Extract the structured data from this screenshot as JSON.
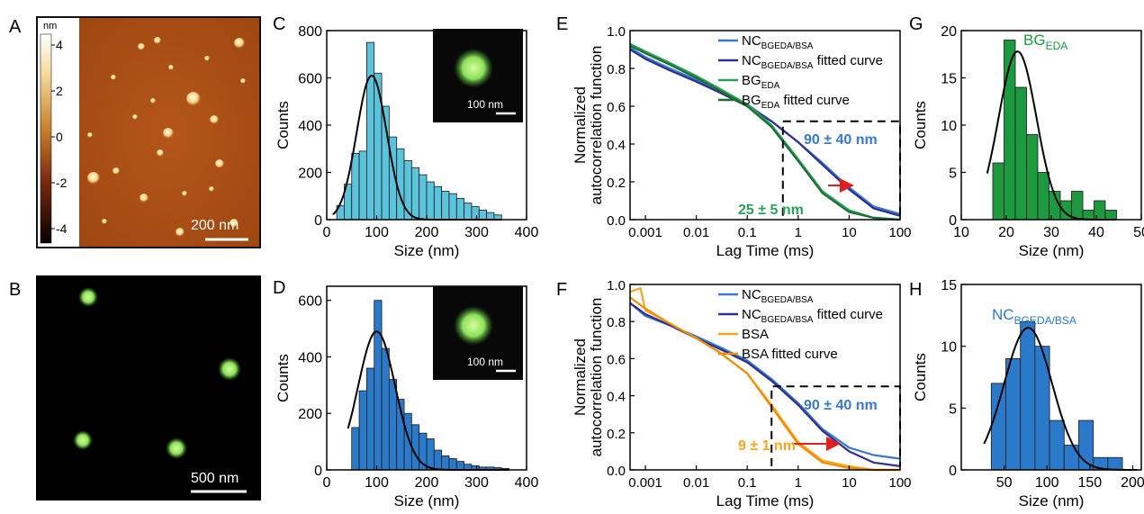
{
  "panels": {
    "A": {
      "letter": "A",
      "colorbar_unit": "nm",
      "colorbar_ticks": [
        "4",
        "2",
        "0",
        "-2",
        "-4"
      ],
      "scale_bar": "200 nm"
    },
    "B": {
      "letter": "B",
      "scale_bar": "500 nm"
    },
    "C": {
      "letter": "C",
      "inset_scale_bar": "100 nm"
    },
    "D": {
      "letter": "D",
      "inset_scale_bar": "100 nm"
    },
    "E": {
      "letter": "E",
      "annotation_large": "90 ± 40 nm",
      "annotation_small": "25 ± 5 nm"
    },
    "F": {
      "letter": "F",
      "annotation_large": "90 ± 40 nm",
      "annotation_small": "9 ± 1 nm"
    },
    "G": {
      "letter": "G"
    },
    "H": {
      "letter": "H"
    }
  },
  "colors": {
    "hist_C": "#5cc3dc",
    "hist_D": "#2b7ac9",
    "hist_G": "#1d9a3f",
    "hist_H": "#2b7ac9",
    "nc_trace": "#3a78c8",
    "nc_fit": "#2e2f8f",
    "bg_trace": "#2ca05a",
    "bg_fit": "#1e6e35",
    "bsa_trace": "#f5a623",
    "bsa_fit": "#f08c00",
    "arrow": "#e02020"
  },
  "chart_data": [
    {
      "id": "C",
      "type": "bar",
      "xlabel": "Size (nm)",
      "ylabel": "Counts",
      "xlim": [
        0,
        400
      ],
      "ylim": [
        0,
        800
      ],
      "xticks": [
        "0",
        "100",
        "200",
        "300",
        "400"
      ],
      "yticks": [
        "0",
        "200",
        "400",
        "600",
        "800"
      ],
      "bin_edges": [
        20,
        35,
        50,
        65,
        80,
        95,
        110,
        125,
        140,
        155,
        170,
        185,
        200,
        215,
        230,
        245,
        260,
        275,
        290,
        305,
        320,
        335,
        350
      ],
      "values": [
        60,
        150,
        280,
        290,
        750,
        620,
        480,
        350,
        300,
        250,
        220,
        190,
        160,
        140,
        120,
        110,
        90,
        70,
        55,
        40,
        30,
        20
      ],
      "fit": {
        "type": "gaussian",
        "mean": 90,
        "sigma": 30,
        "peak": 610
      }
    },
    {
      "id": "D",
      "type": "bar",
      "xlabel": "Size (nm)",
      "ylabel": "Counts",
      "xlim": [
        0,
        400
      ],
      "ylim": [
        0,
        650
      ],
      "xticks": [
        "0",
        "100",
        "200",
        "300",
        "400"
      ],
      "yticks": [
        "0",
        "200",
        "400",
        "600"
      ],
      "bin_edges": [
        50,
        65,
        80,
        95,
        110,
        125,
        140,
        155,
        170,
        185,
        200,
        215,
        230,
        245,
        260,
        275,
        290,
        305,
        320,
        335,
        350,
        365
      ],
      "values": [
        150,
        280,
        360,
        600,
        430,
        320,
        250,
        200,
        160,
        130,
        110,
        70,
        50,
        40,
        30,
        20,
        15,
        10,
        10,
        8,
        5
      ],
      "fit": {
        "type": "gaussian",
        "mean": 100,
        "sigma": 37,
        "peak": 490
      }
    },
    {
      "id": "E",
      "type": "line",
      "xlabel": "Lag Time (ms)",
      "ylabel": "Normalized autocorrelation function",
      "xscale": "log",
      "xlim": [
        0.0005,
        100
      ],
      "ylim": [
        0,
        1.0
      ],
      "xticks": [
        "0.001",
        "0.01",
        "0.1",
        "1",
        "10",
        "100"
      ],
      "yticks": [
        "0.0",
        "0.2",
        "0.4",
        "0.6",
        "0.8",
        "1.0"
      ],
      "legend_position": "top-right",
      "series": [
        {
          "legend": "NC",
          "legend_sub": "BGEDA/BSA",
          "legend_suffix": "",
          "x": [
            0.0005,
            0.001,
            0.003,
            0.01,
            0.03,
            0.1,
            0.3,
            1,
            3,
            10,
            30,
            100
          ],
          "y": [
            0.91,
            0.86,
            0.8,
            0.74,
            0.68,
            0.61,
            0.52,
            0.41,
            0.3,
            0.17,
            0.07,
            0.03
          ]
        },
        {
          "legend": "NC",
          "legend_sub": "BGEDA/BSA",
          "legend_suffix": " fitted curve",
          "x": [
            0.0005,
            0.001,
            0.003,
            0.01,
            0.03,
            0.1,
            0.3,
            1,
            3,
            10,
            30,
            100
          ],
          "y": [
            0.9,
            0.85,
            0.79,
            0.73,
            0.67,
            0.6,
            0.52,
            0.41,
            0.29,
            0.16,
            0.06,
            0.02
          ]
        },
        {
          "legend": "BG",
          "legend_sub": "EDA",
          "legend_suffix": "",
          "x": [
            0.0005,
            0.001,
            0.003,
            0.01,
            0.03,
            0.1,
            0.3,
            1,
            3,
            10,
            30,
            100
          ],
          "y": [
            0.93,
            0.89,
            0.83,
            0.76,
            0.69,
            0.61,
            0.5,
            0.32,
            0.15,
            0.05,
            0.01,
            0.0
          ]
        },
        {
          "legend": "BG",
          "legend_sub": "EDA",
          "legend_suffix": " fitted curve",
          "x": [
            0.0005,
            0.001,
            0.003,
            0.01,
            0.03,
            0.1,
            0.3,
            1,
            3,
            10,
            30,
            100
          ],
          "y": [
            0.92,
            0.88,
            0.82,
            0.75,
            0.68,
            0.6,
            0.49,
            0.31,
            0.14,
            0.04,
            0.01,
            0.0
          ]
        }
      ],
      "box": {
        "x": [
          0.5,
          100
        ],
        "y": [
          0.02,
          0.52
        ]
      }
    },
    {
      "id": "F",
      "type": "line",
      "xlabel": "Lag Time (ms)",
      "ylabel": "Normalized autocorrelation function",
      "xscale": "log",
      "xlim": [
        0.0005,
        100
      ],
      "ylim": [
        0,
        1.0
      ],
      "xticks": [
        "0.001",
        "0.01",
        "0.1",
        "1",
        "10",
        "100"
      ],
      "yticks": [
        "0.0",
        "0.2",
        "0.4",
        "0.6",
        "0.8",
        "1.0"
      ],
      "legend_position": "top-right",
      "series": [
        {
          "legend": "NC",
          "legend_sub": "BGEDA/BSA",
          "legend_suffix": "",
          "x": [
            0.0005,
            0.001,
            0.003,
            0.01,
            0.03,
            0.1,
            0.3,
            1,
            3,
            10,
            30,
            100
          ],
          "y": [
            0.9,
            0.83,
            0.78,
            0.72,
            0.66,
            0.59,
            0.49,
            0.36,
            0.22,
            0.12,
            0.08,
            0.06
          ]
        },
        {
          "legend": "NC",
          "legend_sub": "BGEDA/BSA",
          "legend_suffix": " fitted curve",
          "x": [
            0.0005,
            0.001,
            0.003,
            0.01,
            0.03,
            0.1,
            0.3,
            1,
            3,
            10,
            30,
            100
          ],
          "y": [
            0.9,
            0.84,
            0.78,
            0.71,
            0.65,
            0.58,
            0.48,
            0.35,
            0.21,
            0.1,
            0.04,
            0.02
          ]
        },
        {
          "legend": "BSA",
          "legend_sub": "",
          "legend_suffix": "",
          "x": [
            0.0005,
            0.0008,
            0.001,
            0.003,
            0.01,
            0.03,
            0.1,
            0.3,
            1,
            3,
            10,
            30,
            100
          ],
          "y": [
            0.96,
            0.98,
            0.86,
            0.79,
            0.71,
            0.63,
            0.52,
            0.35,
            0.15,
            0.05,
            0.02,
            0.0,
            0.0
          ]
        },
        {
          "legend": "BSA",
          "legend_sub": "",
          "legend_suffix": " fitted curve",
          "x": [
            0.0005,
            0.001,
            0.003,
            0.01,
            0.03,
            0.1,
            0.3,
            1,
            3,
            10,
            30,
            100
          ],
          "y": [
            0.93,
            0.87,
            0.79,
            0.71,
            0.63,
            0.52,
            0.34,
            0.14,
            0.04,
            0.01,
            0.0,
            0.0
          ]
        }
      ],
      "box": {
        "x": [
          0.3,
          100
        ],
        "y": [
          0.02,
          0.45
        ]
      }
    },
    {
      "id": "G",
      "type": "bar",
      "title": "BG",
      "title_sub": "EDA",
      "xlabel": "Size (nm)",
      "ylabel": "Counts",
      "xlim": [
        10,
        50
      ],
      "ylim": [
        0,
        20
      ],
      "xticks": [
        "10",
        "20",
        "30",
        "40",
        "50"
      ],
      "yticks": [
        "0",
        "5",
        "10",
        "15",
        "20"
      ],
      "bin_edges": [
        17,
        19.5,
        22,
        24.5,
        27,
        29.5,
        32,
        34.5,
        37,
        39.5,
        42,
        44.5
      ],
      "values": [
        6,
        19,
        14,
        9,
        5,
        3,
        2,
        3,
        1,
        2,
        1
      ],
      "fit": {
        "type": "gaussian",
        "mean": 22.5,
        "sigma": 4.2,
        "peak": 17.8
      }
    },
    {
      "id": "H",
      "type": "bar",
      "title": "NC",
      "title_sub": "BGEDA/BSA",
      "xlabel": "Size (nm)",
      "ylabel": "Counts",
      "xlim": [
        0,
        210
      ],
      "ylim": [
        0,
        15
      ],
      "xticks": [
        "50",
        "100",
        "150",
        "200"
      ],
      "yticks": [
        "0",
        "5",
        "10",
        "15"
      ],
      "bin_edges": [
        35,
        52,
        69,
        86,
        103,
        120,
        137,
        154,
        171,
        188,
        205
      ],
      "values": [
        7,
        9,
        12,
        10,
        4,
        2,
        4,
        1,
        1,
        0
      ],
      "fit": {
        "type": "gaussian",
        "mean": 78,
        "sigma": 28,
        "peak": 11.5
      }
    }
  ]
}
